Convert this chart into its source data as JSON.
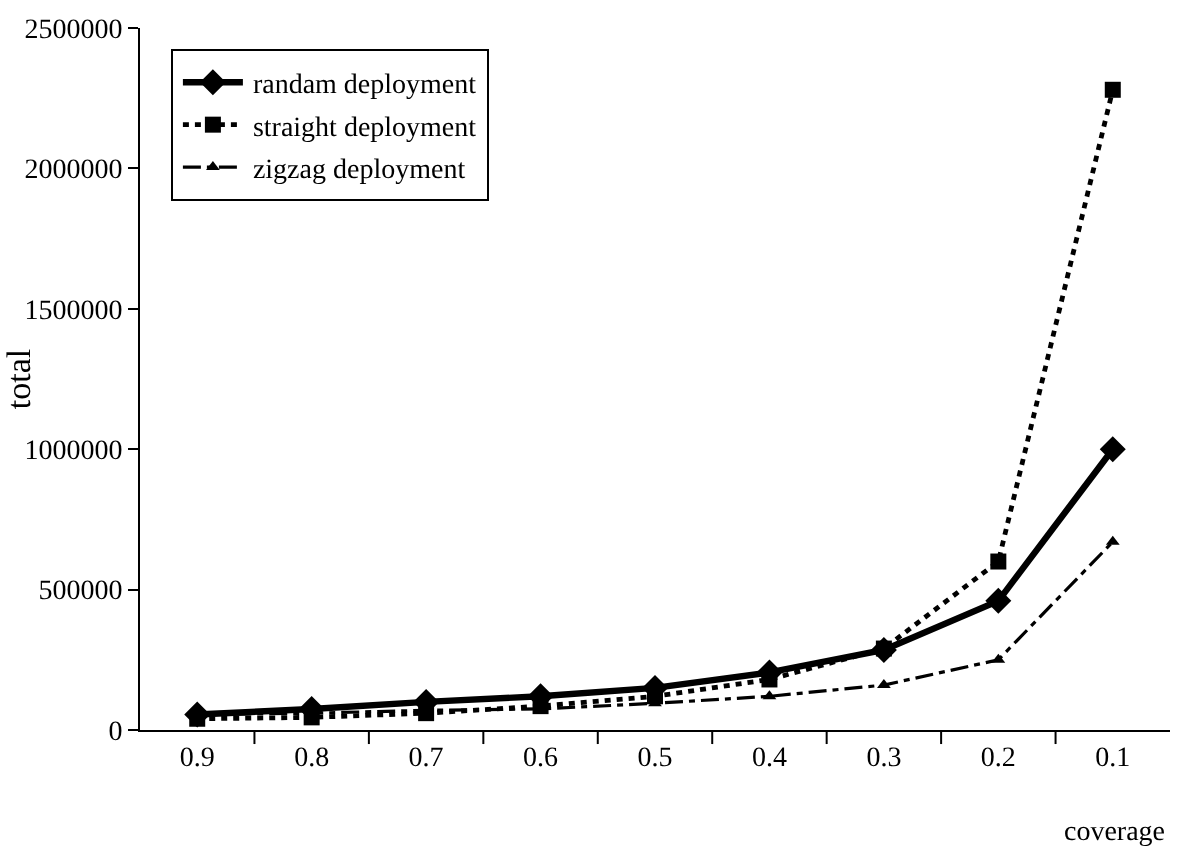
{
  "chart_data": {
    "type": "line",
    "xlabel": "coverage",
    "ylabel": "total",
    "categories": [
      "0.9",
      "0.8",
      "0.7",
      "0.6",
      "0.5",
      "0.4",
      "0.3",
      "0.2",
      "0.1"
    ],
    "ylim": [
      0,
      2500000
    ],
    "yticks": [
      0,
      500000,
      1000000,
      1500000,
      2000000,
      2500000
    ],
    "grid": false,
    "legend": "top left",
    "series": [
      {
        "name": "randam deployment",
        "color": "#000000",
        "marker": "diamond",
        "line_style": "solid",
        "values": [
          55000,
          75000,
          100000,
          120000,
          150000,
          205000,
          285000,
          460000,
          1000000
        ]
      },
      {
        "name": "straight deployment",
        "color": "#000000",
        "marker": "square",
        "line_style": "dotted",
        "values": [
          40000,
          45000,
          60000,
          85000,
          120000,
          180000,
          290000,
          600000,
          2280000
        ]
      },
      {
        "name": "zigzag deployment",
        "color": "#000000",
        "marker": "triangle",
        "line_style": "dashdot",
        "values": [
          55000,
          60000,
          70000,
          75000,
          95000,
          120000,
          160000,
          250000,
          670000
        ]
      }
    ]
  }
}
